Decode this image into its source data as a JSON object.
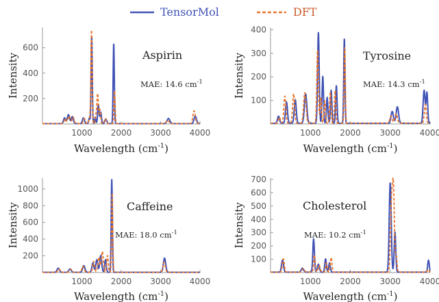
{
  "legend": {
    "items": [
      {
        "label": "TensorMol",
        "color": "#3F51B5",
        "style": "solid"
      },
      {
        "label": "DFT",
        "color": "#E8742A",
        "style": "dashed"
      }
    ]
  },
  "chart_data": [
    {
      "type": "line",
      "panel": "top-left",
      "title": "Aspirin",
      "mae": "MAE: 14.6 cm",
      "mae_sup": "-1",
      "xlabel": "Wavelength  (cm",
      "xlabel_sup": "-1",
      "xlabel_close": ")",
      "ylabel": "Intensity",
      "xlim": [
        0,
        4000
      ],
      "ylim": [
        0,
        760
      ],
      "xticks": [
        1000,
        2000,
        3000,
        4000
      ],
      "yticks": [
        200,
        400,
        600
      ],
      "series": [
        {
          "name": "TensorMol",
          "color": "#3F51B5",
          "peaks": [
            [
              560,
              45,
              25
            ],
            [
              660,
              70,
              30
            ],
            [
              760,
              55,
              25
            ],
            [
              1040,
              45,
              25
            ],
            [
              1190,
              40,
              18
            ],
            [
              1250,
              690,
              15
            ],
            [
              1340,
              50,
              15
            ],
            [
              1420,
              150,
              18
            ],
            [
              1480,
              90,
              18
            ],
            [
              1610,
              35,
              25
            ],
            [
              1810,
              630,
              15
            ],
            [
              3200,
              40,
              35
            ],
            [
              3880,
              60,
              30
            ]
          ]
        },
        {
          "name": "DFT",
          "color": "#E8742A",
          "peaks": [
            [
              580,
              40,
              25
            ],
            [
              680,
              60,
              30
            ],
            [
              780,
              50,
              25
            ],
            [
              1060,
              40,
              25
            ],
            [
              1200,
              50,
              18
            ],
            [
              1245,
              735,
              15
            ],
            [
              1360,
              60,
              15
            ],
            [
              1400,
              235,
              18
            ],
            [
              1460,
              110,
              18
            ],
            [
              1600,
              40,
              25
            ],
            [
              1830,
              260,
              15
            ],
            [
              3180,
              25,
              35
            ],
            [
              3850,
              100,
              30
            ]
          ]
        }
      ]
    },
    {
      "type": "line",
      "panel": "top-right",
      "title": "Tyrosine",
      "mae": "MAE: 14.3 cm",
      "mae_sup": "-1",
      "xlabel": "Wavelength  (cm",
      "xlabel_sup": "-1",
      "xlabel_close": ")",
      "ylabel": "Intensity",
      "xlim": [
        0,
        4000
      ],
      "ylim": [
        0,
        410
      ],
      "xticks": [
        1000,
        2000,
        3000,
        4000
      ],
      "yticks": [
        100,
        200,
        300,
        400
      ],
      "series": [
        {
          "name": "TensorMol",
          "color": "#3F51B5",
          "peaks": [
            [
              200,
              30,
              25
            ],
            [
              400,
              90,
              25
            ],
            [
              620,
              100,
              25
            ],
            [
              880,
              125,
              30
            ],
            [
              1200,
              385,
              20
            ],
            [
              1310,
              200,
              18
            ],
            [
              1420,
              110,
              18
            ],
            [
              1520,
              140,
              18
            ],
            [
              1650,
              160,
              18
            ],
            [
              1850,
              360,
              15
            ],
            [
              3050,
              50,
              30
            ],
            [
              3180,
              70,
              30
            ],
            [
              3850,
              140,
              25
            ],
            [
              3920,
              130,
              20
            ]
          ]
        },
        {
          "name": "DFT",
          "color": "#E8742A",
          "peaks": [
            [
              220,
              25,
              25
            ],
            [
              360,
              115,
              25
            ],
            [
              580,
              125,
              25
            ],
            [
              860,
              130,
              30
            ],
            [
              1180,
              310,
              20
            ],
            [
              1260,
              110,
              18
            ],
            [
              1360,
              95,
              18
            ],
            [
              1500,
              130,
              18
            ],
            [
              1620,
              140,
              18
            ],
            [
              1860,
              320,
              15
            ],
            [
              3020,
              30,
              30
            ],
            [
              3150,
              40,
              30
            ],
            [
              3880,
              80,
              25
            ]
          ]
        }
      ]
    },
    {
      "type": "line",
      "panel": "bottom-left",
      "title": "Caffeine",
      "mae": "MAE: 18.0 cm",
      "mae_sup": "-1",
      "xlabel": "Wavelength  (cm",
      "xlabel_sup": "-1",
      "xlabel_close": ")",
      "ylabel": "Intensity",
      "xlim": [
        0,
        4000
      ],
      "ylim": [
        0,
        1130
      ],
      "xticks": [
        1000,
        2000,
        3000,
        4000
      ],
      "yticks": [
        200,
        400,
        600,
        800,
        1000
      ],
      "series": [
        {
          "name": "TensorMol",
          "color": "#3F51B5",
          "peaks": [
            [
              400,
              50,
              30
            ],
            [
              700,
              40,
              30
            ],
            [
              1050,
              80,
              30
            ],
            [
              1280,
              110,
              25
            ],
            [
              1380,
              150,
              25
            ],
            [
              1480,
              200,
              25
            ],
            [
              1600,
              150,
              20
            ],
            [
              1760,
              1110,
              15
            ],
            [
              3100,
              170,
              30
            ]
          ]
        },
        {
          "name": "DFT",
          "color": "#E8742A",
          "peaks": [
            [
              420,
              40,
              30
            ],
            [
              720,
              35,
              30
            ],
            [
              1030,
              70,
              30
            ],
            [
              1300,
              130,
              25
            ],
            [
              1430,
              180,
              25
            ],
            [
              1520,
              250,
              25
            ],
            [
              1650,
              200,
              20
            ],
            [
              1770,
              950,
              15
            ],
            [
              3090,
              120,
              30
            ]
          ]
        }
      ]
    },
    {
      "type": "line",
      "panel": "bottom-right",
      "title": "Cholesterol",
      "mae": "MAE: 10.2 cm",
      "mae_sup": "-1",
      "xlabel": "Wavelength  (cm",
      "xlabel_sup": "-1",
      "xlabel_close": ")",
      "ylabel": "Intensity",
      "xlim": [
        0,
        4000
      ],
      "ylim": [
        0,
        710
      ],
      "xticks": [
        1000,
        2000,
        3000,
        4000
      ],
      "yticks": [
        100,
        200,
        300,
        400,
        500,
        600,
        700
      ],
      "series": [
        {
          "name": "TensorMol",
          "color": "#3F51B5",
          "peaks": [
            [
              300,
              90,
              25
            ],
            [
              800,
              30,
              30
            ],
            [
              1080,
              250,
              20
            ],
            [
              1200,
              60,
              25
            ],
            [
              1380,
              100,
              20
            ],
            [
              1480,
              70,
              20
            ],
            [
              3000,
              670,
              25
            ],
            [
              3120,
              300,
              20
            ],
            [
              3960,
              90,
              20
            ]
          ]
        },
        {
          "name": "DFT",
          "color": "#E8742A",
          "peaks": [
            [
              320,
              100,
              25
            ],
            [
              820,
              25,
              30
            ],
            [
              1100,
              130,
              20
            ],
            [
              1220,
              50,
              25
            ],
            [
              1400,
              70,
              20
            ],
            [
              1520,
              110,
              20
            ],
            [
              3030,
              480,
              25
            ],
            [
              3080,
              620,
              25
            ],
            [
              3150,
              120,
              20
            ],
            [
              3950,
              20,
              20
            ]
          ]
        }
      ]
    }
  ]
}
